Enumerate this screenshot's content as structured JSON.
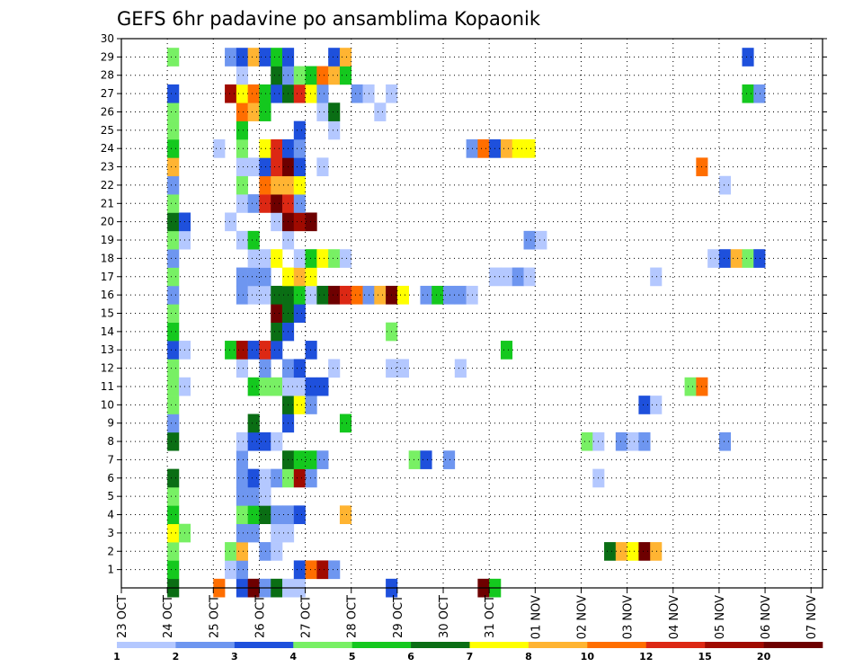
{
  "chart_data": {
    "type": "heatmap",
    "title": "GEFS 6hr padavine po ansamblima Kopaonik",
    "xlabel": "",
    "ylabel": "",
    "x_ticks": [
      "23 OCT",
      "24 OCT",
      "25 OCT",
      "26 OCT",
      "27 OCT",
      "28 OCT",
      "29 OCT",
      "30 OCT",
      "31 OCT",
      "01 NOV",
      "02 NOV",
      "03 NOV",
      "04 NOV",
      "05 NOV",
      "06 NOV",
      "07 NOV"
    ],
    "x_range_days": [
      0,
      15.25
    ],
    "time_step_hours": 6,
    "y_ticks": [
      1,
      2,
      3,
      4,
      5,
      6,
      7,
      8,
      9,
      10,
      11,
      12,
      13,
      14,
      15,
      16,
      17,
      18,
      19,
      20,
      21,
      22,
      23,
      24,
      25,
      26,
      27,
      28,
      29,
      30
    ],
    "y_range": [
      0,
      30
    ],
    "grid": "dotted",
    "colorbar": {
      "levels": [
        1,
        2,
        3,
        4,
        5,
        6,
        7,
        8,
        10,
        12,
        15,
        20
      ],
      "tick_labels": [
        "1",
        "2",
        "3",
        "4",
        "5",
        "6",
        "7",
        "8",
        "10",
        "12",
        "15",
        "20"
      ],
      "colors": [
        "#b4c8ff",
        "#6e96f0",
        "#1e50dc",
        "#78f064",
        "#14c81e",
        "#0a6e14",
        "#ffff00",
        "#ffb432",
        "#ff6e00",
        "#dc2814",
        "#a00a00",
        "#6e0000"
      ]
    },
    "cells": [
      [
        1,
        0,
        5
      ],
      [
        1,
        4,
        8
      ],
      [
        1,
        6,
        2
      ],
      [
        1,
        7,
        11
      ],
      [
        1,
        8,
        1
      ],
      [
        1,
        9,
        5
      ],
      [
        1,
        10,
        0
      ],
      [
        1,
        11,
        0
      ],
      [
        1,
        19,
        2
      ],
      [
        1,
        27,
        11
      ],
      [
        1,
        28,
        4
      ],
      [
        2,
        0,
        4
      ],
      [
        2,
        5,
        0
      ],
      [
        2,
        6,
        1
      ],
      [
        2,
        11,
        2
      ],
      [
        2,
        12,
        8
      ],
      [
        2,
        13,
        10
      ],
      [
        2,
        14,
        1
      ],
      [
        3,
        0,
        3
      ],
      [
        3,
        5,
        3
      ],
      [
        3,
        6,
        7
      ],
      [
        3,
        8,
        1
      ],
      [
        3,
        9,
        0
      ],
      [
        3,
        38,
        5
      ],
      [
        3,
        39,
        7
      ],
      [
        3,
        40,
        6
      ],
      [
        3,
        41,
        11
      ],
      [
        3,
        42,
        7
      ],
      [
        4,
        0,
        6
      ],
      [
        4,
        1,
        3
      ],
      [
        4,
        6,
        1
      ],
      [
        4,
        7,
        1
      ],
      [
        4,
        9,
        0
      ],
      [
        4,
        10,
        0
      ],
      [
        5,
        0,
        4
      ],
      [
        5,
        6,
        3
      ],
      [
        5,
        7,
        4
      ],
      [
        5,
        8,
        5
      ],
      [
        5,
        9,
        1
      ],
      [
        5,
        10,
        1
      ],
      [
        5,
        11,
        2
      ],
      [
        5,
        15,
        7
      ],
      [
        6,
        0,
        3
      ],
      [
        6,
        6,
        1
      ],
      [
        6,
        7,
        1
      ],
      [
        6,
        8,
        0
      ],
      [
        7,
        0,
        5
      ],
      [
        7,
        6,
        1
      ],
      [
        7,
        7,
        2
      ],
      [
        7,
        8,
        0
      ],
      [
        7,
        9,
        1
      ],
      [
        7,
        10,
        3
      ],
      [
        7,
        11,
        10
      ],
      [
        7,
        12,
        1
      ],
      [
        7,
        37,
        0
      ],
      [
        8,
        6,
        1
      ],
      [
        8,
        10,
        5
      ],
      [
        8,
        11,
        4
      ],
      [
        8,
        12,
        4
      ],
      [
        8,
        13,
        1
      ],
      [
        8,
        21,
        3
      ],
      [
        8,
        22,
        2
      ],
      [
        8,
        24,
        1
      ],
      [
        9,
        0,
        5
      ],
      [
        9,
        6,
        0
      ],
      [
        9,
        7,
        2
      ],
      [
        9,
        8,
        2
      ],
      [
        9,
        9,
        0
      ],
      [
        9,
        36,
        3
      ],
      [
        9,
        37,
        0
      ],
      [
        9,
        39,
        1
      ],
      [
        9,
        40,
        0
      ],
      [
        9,
        41,
        1
      ],
      [
        9,
        48,
        1
      ],
      [
        10,
        0,
        1
      ],
      [
        10,
        7,
        5
      ],
      [
        10,
        10,
        2
      ],
      [
        10,
        15,
        4
      ],
      [
        11,
        0,
        3
      ],
      [
        11,
        10,
        5
      ],
      [
        11,
        11,
        6
      ],
      [
        11,
        12,
        1
      ],
      [
        11,
        41,
        2
      ],
      [
        11,
        42,
        0
      ],
      [
        12,
        0,
        3
      ],
      [
        12,
        1,
        0
      ],
      [
        12,
        7,
        4
      ],
      [
        12,
        8,
        3
      ],
      [
        12,
        9,
        3
      ],
      [
        12,
        10,
        0
      ],
      [
        12,
        11,
        0
      ],
      [
        12,
        12,
        2
      ],
      [
        12,
        13,
        2
      ],
      [
        12,
        45,
        3
      ],
      [
        12,
        46,
        8
      ],
      [
        13,
        0,
        3
      ],
      [
        13,
        6,
        0
      ],
      [
        13,
        8,
        1
      ],
      [
        13,
        10,
        1
      ],
      [
        13,
        11,
        2
      ],
      [
        13,
        14,
        0
      ],
      [
        13,
        19,
        0
      ],
      [
        13,
        20,
        0
      ],
      [
        13,
        25,
        0
      ],
      [
        14,
        0,
        2
      ],
      [
        14,
        1,
        0
      ],
      [
        14,
        5,
        4
      ],
      [
        14,
        6,
        10
      ],
      [
        14,
        7,
        2
      ],
      [
        14,
        8,
        9
      ],
      [
        14,
        9,
        2
      ],
      [
        14,
        12,
        2
      ],
      [
        14,
        29,
        4
      ],
      [
        15,
        0,
        4
      ],
      [
        15,
        9,
        5
      ],
      [
        15,
        10,
        2
      ],
      [
        15,
        19,
        3
      ],
      [
        16,
        0,
        3
      ],
      [
        16,
        9,
        11
      ],
      [
        16,
        10,
        5
      ],
      [
        16,
        11,
        2
      ],
      [
        17,
        0,
        1
      ],
      [
        17,
        6,
        1
      ],
      [
        17,
        7,
        0
      ],
      [
        17,
        8,
        0
      ],
      [
        17,
        9,
        5
      ],
      [
        17,
        10,
        5
      ],
      [
        17,
        11,
        4
      ],
      [
        17,
        12,
        0
      ],
      [
        17,
        13,
        5
      ],
      [
        17,
        14,
        11
      ],
      [
        17,
        15,
        9
      ],
      [
        17,
        16,
        8
      ],
      [
        17,
        17,
        1
      ],
      [
        17,
        18,
        7
      ],
      [
        17,
        19,
        11
      ],
      [
        17,
        20,
        6
      ],
      [
        17,
        22,
        1
      ],
      [
        17,
        23,
        4
      ],
      [
        17,
        24,
        1
      ],
      [
        17,
        25,
        1
      ],
      [
        17,
        26,
        0
      ],
      [
        18,
        0,
        3
      ],
      [
        18,
        6,
        1
      ],
      [
        18,
        7,
        1
      ],
      [
        18,
        8,
        1
      ],
      [
        18,
        10,
        6
      ],
      [
        18,
        11,
        7
      ],
      [
        18,
        12,
        6
      ],
      [
        18,
        28,
        0
      ],
      [
        18,
        29,
        0
      ],
      [
        18,
        30,
        1
      ],
      [
        18,
        31,
        0
      ],
      [
        18,
        42,
        0
      ],
      [
        19,
        0,
        1
      ],
      [
        19,
        7,
        0
      ],
      [
        19,
        8,
        0
      ],
      [
        19,
        9,
        6
      ],
      [
        19,
        11,
        0
      ],
      [
        19,
        12,
        4
      ],
      [
        19,
        13,
        6
      ],
      [
        19,
        14,
        3
      ],
      [
        19,
        15,
        0
      ],
      [
        19,
        47,
        0
      ],
      [
        19,
        48,
        2
      ],
      [
        19,
        49,
        7
      ],
      [
        19,
        50,
        3
      ],
      [
        19,
        51,
        2
      ],
      [
        20,
        0,
        3
      ],
      [
        20,
        1,
        0
      ],
      [
        20,
        6,
        0
      ],
      [
        20,
        7,
        4
      ],
      [
        20,
        10,
        0
      ],
      [
        20,
        31,
        1
      ],
      [
        20,
        32,
        0
      ],
      [
        21,
        0,
        5
      ],
      [
        21,
        1,
        2
      ],
      [
        21,
        5,
        0
      ],
      [
        21,
        9,
        0
      ],
      [
        21,
        10,
        11
      ],
      [
        21,
        11,
        10
      ],
      [
        21,
        12,
        11
      ],
      [
        22,
        0,
        3
      ],
      [
        22,
        6,
        0
      ],
      [
        22,
        7,
        1
      ],
      [
        22,
        8,
        9
      ],
      [
        22,
        9,
        11
      ],
      [
        22,
        10,
        9
      ],
      [
        22,
        11,
        1
      ],
      [
        23,
        0,
        1
      ],
      [
        23,
        6,
        3
      ],
      [
        23,
        8,
        8
      ],
      [
        23,
        9,
        7
      ],
      [
        23,
        10,
        7
      ],
      [
        23,
        11,
        6
      ],
      [
        23,
        48,
        0
      ],
      [
        24,
        0,
        7
      ],
      [
        24,
        6,
        0
      ],
      [
        24,
        7,
        0
      ],
      [
        24,
        8,
        2
      ],
      [
        24,
        9,
        9
      ],
      [
        24,
        10,
        11
      ],
      [
        24,
        11,
        2
      ],
      [
        24,
        13,
        0
      ],
      [
        24,
        46,
        8
      ],
      [
        25,
        0,
        4
      ],
      [
        25,
        4,
        0
      ],
      [
        25,
        6,
        3
      ],
      [
        25,
        8,
        6
      ],
      [
        25,
        9,
        9
      ],
      [
        25,
        10,
        2
      ],
      [
        25,
        11,
        1
      ],
      [
        25,
        26,
        1
      ],
      [
        25,
        27,
        8
      ],
      [
        25,
        28,
        2
      ],
      [
        25,
        29,
        7
      ],
      [
        25,
        30,
        6
      ],
      [
        25,
        31,
        6
      ],
      [
        26,
        0,
        3
      ],
      [
        26,
        6,
        4
      ],
      [
        26,
        11,
        2
      ],
      [
        26,
        14,
        0
      ],
      [
        27,
        0,
        3
      ],
      [
        27,
        6,
        8
      ],
      [
        27,
        7,
        7
      ],
      [
        27,
        8,
        4
      ],
      [
        27,
        13,
        0
      ],
      [
        27,
        14,
        5
      ],
      [
        27,
        18,
        0
      ],
      [
        28,
        0,
        2
      ],
      [
        28,
        5,
        10
      ],
      [
        28,
        6,
        6
      ],
      [
        28,
        7,
        8
      ],
      [
        28,
        8,
        4
      ],
      [
        28,
        9,
        2
      ],
      [
        28,
        10,
        5
      ],
      [
        28,
        11,
        9
      ],
      [
        28,
        12,
        6
      ],
      [
        28,
        13,
        1
      ],
      [
        28,
        16,
        1
      ],
      [
        28,
        17,
        0
      ],
      [
        28,
        19,
        0
      ],
      [
        28,
        50,
        4
      ],
      [
        28,
        51,
        1
      ],
      [
        29,
        6,
        0
      ],
      [
        29,
        9,
        5
      ],
      [
        29,
        10,
        1
      ],
      [
        29,
        11,
        3
      ],
      [
        29,
        12,
        4
      ],
      [
        29,
        13,
        8
      ],
      [
        29,
        14,
        7
      ],
      [
        29,
        15,
        4
      ],
      [
        30,
        0,
        3
      ],
      [
        30,
        5,
        1
      ],
      [
        30,
        6,
        2
      ],
      [
        30,
        7,
        7
      ],
      [
        30,
        8,
        2
      ],
      [
        30,
        9,
        4
      ],
      [
        30,
        10,
        2
      ],
      [
        30,
        14,
        2
      ],
      [
        30,
        15,
        7
      ],
      [
        30,
        50,
        2
      ]
    ]
  }
}
